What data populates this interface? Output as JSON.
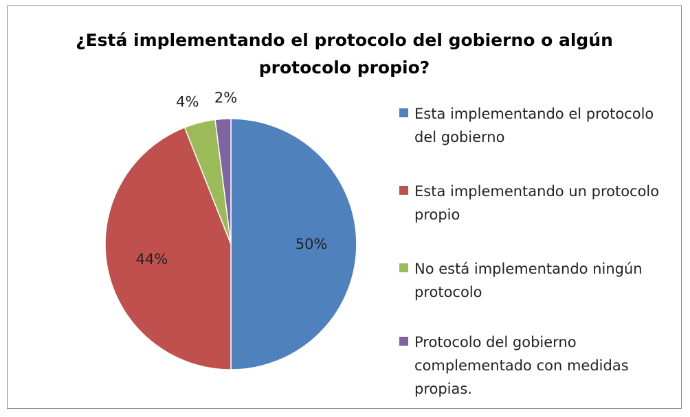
{
  "chart_data": {
    "type": "pie",
    "title": "¿Está implementando el protocolo del gobierno  o algún\nprotocolo propio?",
    "legend_position": "right",
    "slices": [
      {
        "label": "Esta implementando el protocolo del gobierno",
        "value": 50,
        "display": "50%",
        "color": "#4F81BD"
      },
      {
        "label": "Esta implementando un protocolo propio",
        "value": 44,
        "display": "44%",
        "color": "#C0504D"
      },
      {
        "label": "No está implementando ningún protocolo",
        "value": 4,
        "display": "4%",
        "color": "#9BBB59"
      },
      {
        "label": "Protocolo del gobierno complementado con medidas propias.",
        "value": 2,
        "display": "2%",
        "color": "#8064A2"
      }
    ]
  }
}
